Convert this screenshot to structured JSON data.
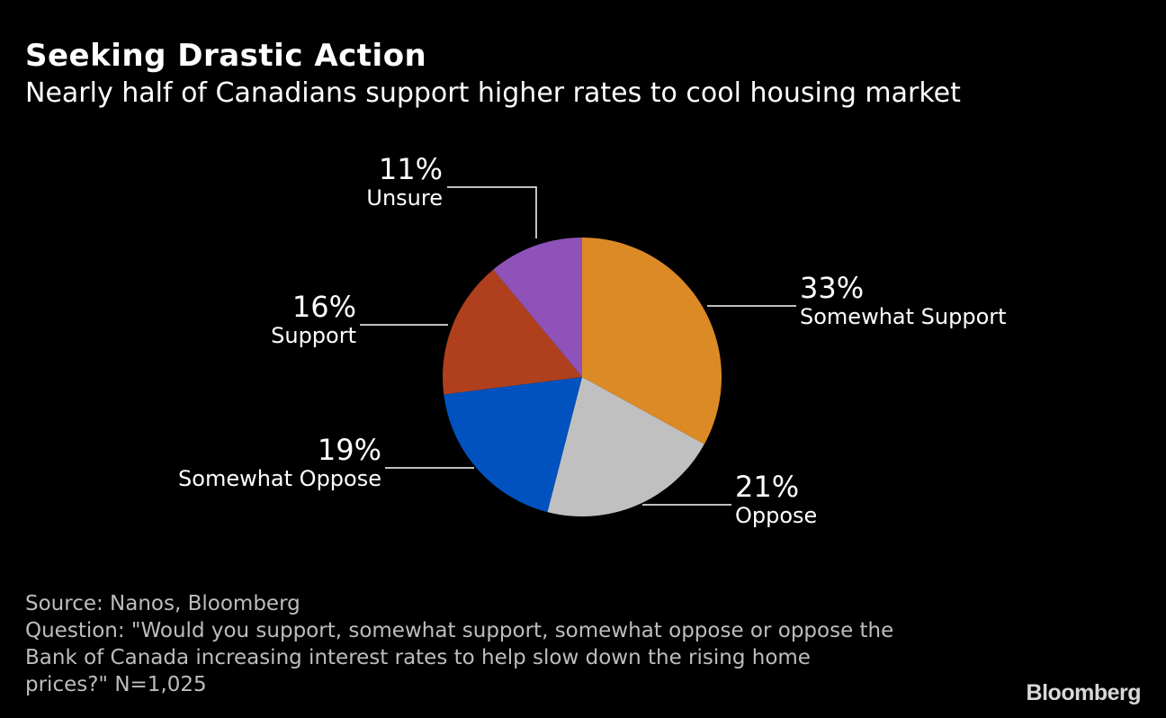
{
  "chart_data": {
    "type": "pie",
    "title": "Seeking Drastic Action",
    "subtitle": "Nearly half of Canadians support higher rates to cool housing market",
    "slices": [
      {
        "label": "Somewhat Support",
        "value": 33,
        "value_label": "33%",
        "color": "#DB8A25"
      },
      {
        "label": "Oppose",
        "value": 21,
        "value_label": "21%",
        "color": "#C0C0C0"
      },
      {
        "label": "Somewhat Oppose",
        "value": 19,
        "value_label": "19%",
        "color": "#0152BF"
      },
      {
        "label": "Support",
        "value": 16,
        "value_label": "16%",
        "color": "#B0401D"
      },
      {
        "label": "Unsure",
        "value": 11,
        "value_label": "11%",
        "color": "#8E52B8"
      }
    ],
    "start_angle": "12 o'clock",
    "direction": "clockwise"
  },
  "footer": {
    "source": "Source: Nanos, Bloomberg",
    "question_lines": [
      "Question: \"Would you support, somewhat support, somewhat oppose or oppose the",
      "Bank of Canada increasing interest rates to help slow down the rising home",
      "prices?\" N=1,025"
    ]
  },
  "logo": "Bloomberg"
}
